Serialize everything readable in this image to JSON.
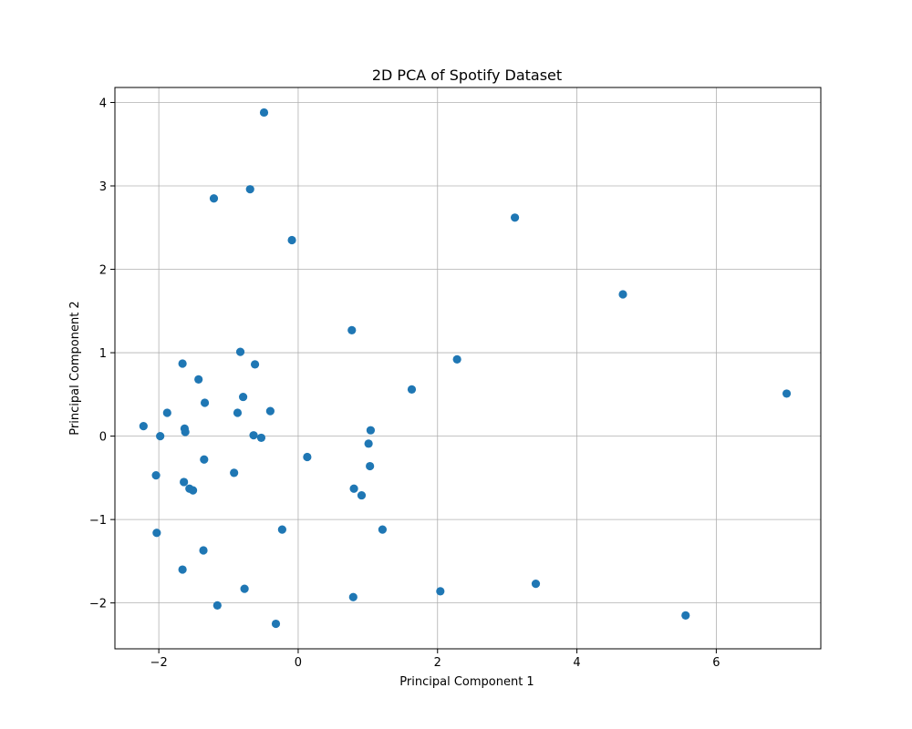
{
  "chart_data": {
    "type": "scatter",
    "title": "2D PCA of Spotify Dataset",
    "xlabel": "Principal Component 1",
    "ylabel": "Principal Component 2",
    "xlim": [
      -2.63,
      7.5
    ],
    "ylim": [
      -2.55,
      4.18
    ],
    "xticks": [
      -2,
      0,
      2,
      4,
      6
    ],
    "yticks": [
      -2,
      -1,
      0,
      1,
      2,
      3,
      4
    ],
    "xtick_labels": [
      "−2",
      "0",
      "2",
      "4",
      "6"
    ],
    "ytick_labels": [
      "−2",
      "−1",
      "0",
      "1",
      "2",
      "3",
      "4"
    ],
    "grid": true,
    "marker_color": "#1f77b4",
    "points": [
      {
        "x": -0.49,
        "y": 3.88
      },
      {
        "x": -0.69,
        "y": 2.96
      },
      {
        "x": -1.21,
        "y": 2.85
      },
      {
        "x": -0.09,
        "y": 2.35
      },
      {
        "x": 3.11,
        "y": 2.62
      },
      {
        "x": 4.66,
        "y": 1.7
      },
      {
        "x": 0.77,
        "y": 1.27
      },
      {
        "x": -0.83,
        "y": 1.01
      },
      {
        "x": 2.28,
        "y": 0.92
      },
      {
        "x": -1.66,
        "y": 0.87
      },
      {
        "x": -0.62,
        "y": 0.86
      },
      {
        "x": -1.43,
        "y": 0.68
      },
      {
        "x": 1.63,
        "y": 0.56
      },
      {
        "x": 7.01,
        "y": 0.51
      },
      {
        "x": -0.79,
        "y": 0.47
      },
      {
        "x": -1.34,
        "y": 0.4
      },
      {
        "x": -0.4,
        "y": 0.3
      },
      {
        "x": -1.88,
        "y": 0.28
      },
      {
        "x": -0.87,
        "y": 0.28
      },
      {
        "x": -2.22,
        "y": 0.12
      },
      {
        "x": -1.63,
        "y": 0.09
      },
      {
        "x": 1.04,
        "y": 0.07
      },
      {
        "x": -1.62,
        "y": 0.05
      },
      {
        "x": -1.98,
        "y": 0.0
      },
      {
        "x": -0.64,
        "y": 0.01
      },
      {
        "x": -0.53,
        "y": -0.02
      },
      {
        "x": 1.01,
        "y": -0.09
      },
      {
        "x": 0.13,
        "y": -0.25
      },
      {
        "x": -1.35,
        "y": -0.28
      },
      {
        "x": 1.03,
        "y": -0.36
      },
      {
        "x": -0.92,
        "y": -0.44
      },
      {
        "x": -2.04,
        "y": -0.47
      },
      {
        "x": -1.64,
        "y": -0.55
      },
      {
        "x": -1.56,
        "y": -0.63
      },
      {
        "x": -1.51,
        "y": -0.65
      },
      {
        "x": 0.8,
        "y": -0.63
      },
      {
        "x": 0.91,
        "y": -0.71
      },
      {
        "x": -0.23,
        "y": -1.12
      },
      {
        "x": 1.21,
        "y": -1.12
      },
      {
        "x": -2.03,
        "y": -1.16
      },
      {
        "x": -1.36,
        "y": -1.37
      },
      {
        "x": -1.66,
        "y": -1.6
      },
      {
        "x": 3.41,
        "y": -1.77
      },
      {
        "x": -0.77,
        "y": -1.83
      },
      {
        "x": 2.04,
        "y": -1.86
      },
      {
        "x": 0.79,
        "y": -1.93
      },
      {
        "x": -1.16,
        "y": -2.03
      },
      {
        "x": -0.32,
        "y": -2.25
      },
      {
        "x": 5.56,
        "y": -2.15
      }
    ]
  }
}
